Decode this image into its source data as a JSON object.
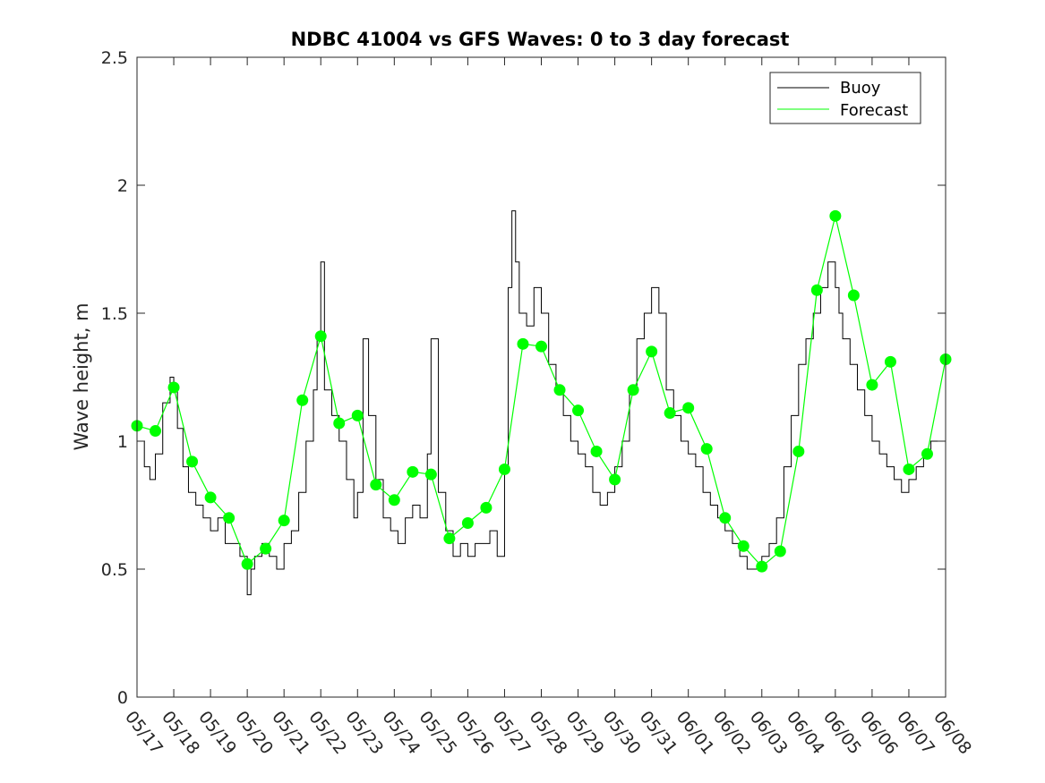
{
  "chart_data": {
    "type": "line",
    "title": "NDBC 41004 vs GFS Waves: 0 to 3 day forecast",
    "xlabel": "",
    "ylabel": "Wave height, m",
    "xlim": [
      "05/17",
      "06/08"
    ],
    "ylim": [
      0,
      2.5
    ],
    "y_ticks": [
      "0",
      "0.5",
      "1",
      "1.5",
      "2",
      "2.5"
    ],
    "x_ticks": [
      "05/17",
      "05/18",
      "05/19",
      "05/20",
      "05/21",
      "05/22",
      "05/23",
      "05/24",
      "05/25",
      "05/26",
      "05/27",
      "05/28",
      "05/29",
      "05/30",
      "05/31",
      "06/01",
      "06/02",
      "06/03",
      "06/04",
      "06/05",
      "06/06",
      "06/07",
      "06/08"
    ],
    "grid": false,
    "legend_position": "top-right",
    "series": [
      {
        "name": "Buoy",
        "color": "#000000",
        "x_day": [
          0,
          0.2,
          0.35,
          0.5,
          0.7,
          0.9,
          1.0,
          1.1,
          1.25,
          1.4,
          1.6,
          1.8,
          2.0,
          2.2,
          2.4,
          2.6,
          2.8,
          3.0,
          3.1,
          3.2,
          3.4,
          3.6,
          3.8,
          4.0,
          4.2,
          4.4,
          4.6,
          4.8,
          4.9,
          5.0,
          5.1,
          5.3,
          5.5,
          5.7,
          5.9,
          6.0,
          6.15,
          6.3,
          6.5,
          6.7,
          6.9,
          7.1,
          7.3,
          7.5,
          7.7,
          7.9,
          8.0,
          8.2,
          8.4,
          8.6,
          8.8,
          9.0,
          9.2,
          9.4,
          9.6,
          9.8,
          10.0,
          10.1,
          10.2,
          10.3,
          10.4,
          10.6,
          10.8,
          11.0,
          11.2,
          11.4,
          11.6,
          11.8,
          12.0,
          12.2,
          12.4,
          12.6,
          12.8,
          13.0,
          13.2,
          13.4,
          13.6,
          13.8,
          14.0,
          14.2,
          14.4,
          14.6,
          14.8,
          15.0,
          15.2,
          15.4,
          15.6,
          15.8,
          16.0,
          16.2,
          16.4,
          16.6,
          16.8,
          17.0,
          17.2,
          17.4,
          17.6,
          17.8,
          18.0,
          18.2,
          18.4,
          18.6,
          18.8,
          19.0,
          19.1,
          19.2,
          19.4,
          19.6,
          19.8,
          20.0,
          20.2,
          20.4,
          20.6,
          20.8,
          21.0,
          21.2,
          21.4,
          21.6,
          21.8,
          22.0
        ],
        "values": [
          1.0,
          0.9,
          0.85,
          0.95,
          1.15,
          1.25,
          1.2,
          1.05,
          0.9,
          0.8,
          0.75,
          0.7,
          0.65,
          0.7,
          0.6,
          0.6,
          0.55,
          0.4,
          0.5,
          0.55,
          0.6,
          0.55,
          0.5,
          0.6,
          0.65,
          0.8,
          1.0,
          1.2,
          1.4,
          1.7,
          1.2,
          1.1,
          1.0,
          0.85,
          0.7,
          0.8,
          1.4,
          1.1,
          0.85,
          0.7,
          0.65,
          0.6,
          0.7,
          0.75,
          0.7,
          0.95,
          1.4,
          0.8,
          0.65,
          0.55,
          0.6,
          0.55,
          0.6,
          0.6,
          0.65,
          0.55,
          0.9,
          1.6,
          1.9,
          1.7,
          1.5,
          1.45,
          1.6,
          1.5,
          1.3,
          1.2,
          1.1,
          1.0,
          0.95,
          0.9,
          0.8,
          0.75,
          0.8,
          0.9,
          1.0,
          1.2,
          1.4,
          1.5,
          1.6,
          1.5,
          1.2,
          1.1,
          1.0,
          0.95,
          0.9,
          0.8,
          0.75,
          0.7,
          0.65,
          0.6,
          0.55,
          0.5,
          0.5,
          0.55,
          0.6,
          0.7,
          0.9,
          1.1,
          1.3,
          1.4,
          1.5,
          1.6,
          1.7,
          1.6,
          1.5,
          1.4,
          1.3,
          1.2,
          1.1,
          1.0,
          0.95,
          0.9,
          0.85,
          0.8,
          0.85,
          0.9,
          0.95,
          1.0,
          1.0,
          1.05
        ]
      },
      {
        "name": "Forecast",
        "color": "#00ff00",
        "x_day": [
          0,
          0.5,
          1.0,
          1.5,
          2.0,
          2.5,
          3.0,
          3.5,
          4.0,
          4.5,
          5.0,
          5.5,
          6.0,
          6.5,
          7.0,
          7.5,
          8.0,
          8.5,
          9.0,
          9.5,
          10.0,
          10.5,
          11.0,
          11.5,
          12.0,
          12.5,
          13.0,
          13.5,
          14.0,
          14.5,
          15.0,
          15.5,
          16.0,
          16.5,
          17.0,
          17.5,
          18.0,
          18.5,
          19.0,
          19.5,
          20.0,
          20.5,
          21.0,
          21.5,
          22.0
        ],
        "values": [
          1.06,
          1.04,
          1.21,
          0.92,
          0.78,
          0.7,
          0.52,
          0.58,
          0.69,
          1.16,
          1.41,
          1.07,
          1.1,
          0.83,
          0.77,
          0.88,
          0.87,
          0.62,
          0.68,
          0.74,
          0.89,
          1.38,
          1.37,
          1.2,
          1.12,
          0.96,
          0.85,
          1.2,
          1.35,
          1.11,
          1.13,
          0.97,
          0.7,
          0.59,
          0.51,
          0.57,
          0.96,
          1.59,
          1.88,
          1.57,
          1.22,
          1.31,
          0.89,
          0.95,
          1.32
        ]
      }
    ]
  }
}
